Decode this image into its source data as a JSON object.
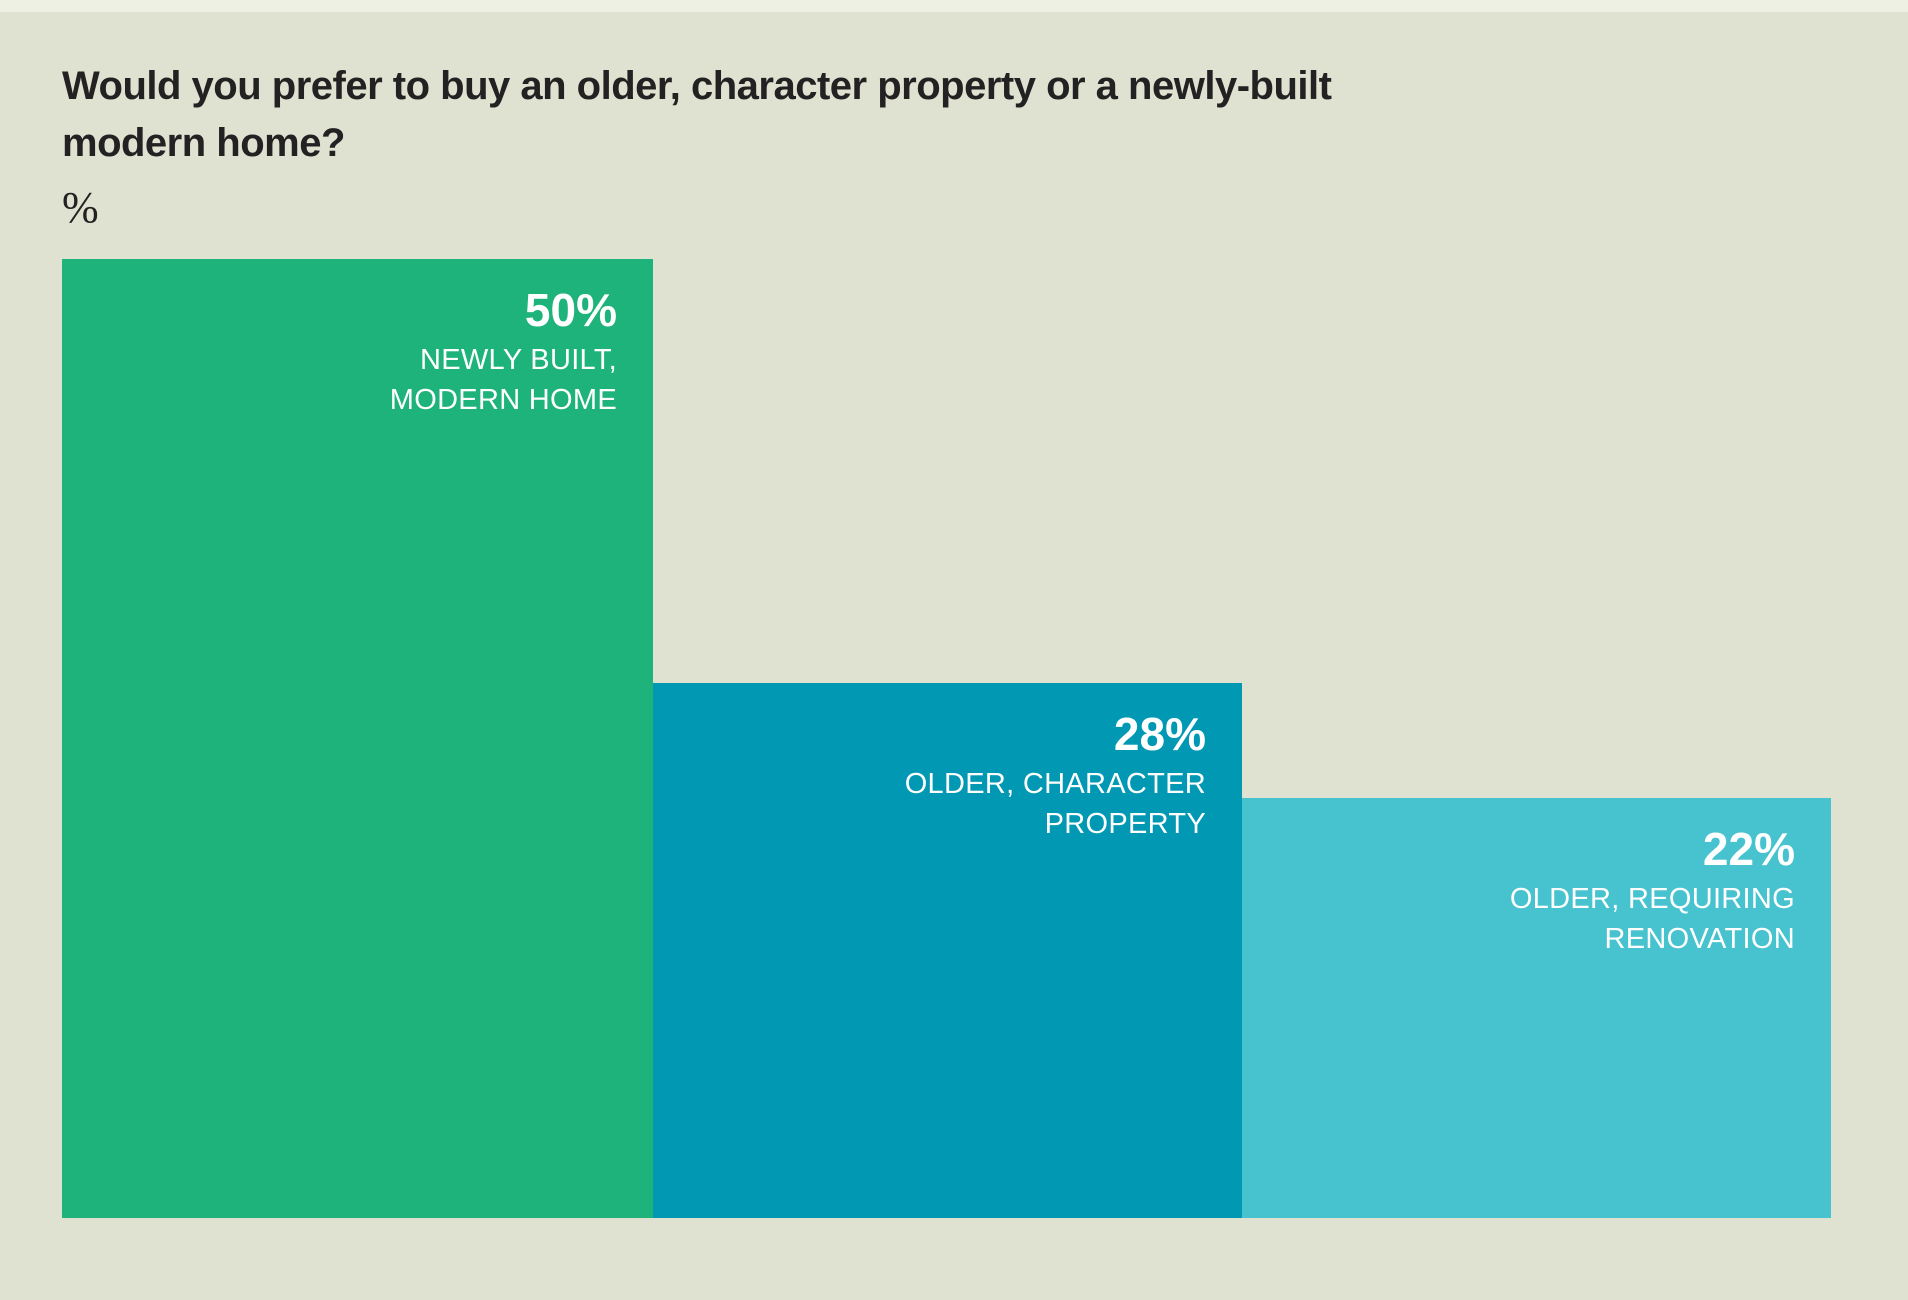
{
  "header": {
    "title_lines": [
      "Would you prefer to buy an older, character property or a newly-built",
      "modern home?"
    ],
    "title_full": "Would you prefer to buy an older, character property or a newly-built modern home?",
    "unit_label": "%"
  },
  "bars": [
    {
      "value_label": "50%",
      "label_lines": [
        "NEWLY BUILT,",
        "MODERN HOME"
      ],
      "color": "#1db37a"
    },
    {
      "value_label": "28%",
      "label_lines": [
        "OLDER, CHARACTER",
        "PROPERTY"
      ],
      "color": "#0098b3"
    },
    {
      "value_label": "22%",
      "label_lines": [
        "OLDER, REQUIRING",
        "RENOVATION"
      ],
      "color": "#47c2cf"
    }
  ],
  "colors": {
    "background": "#dfe2d1",
    "top_strip": "#eef0e3",
    "title_text": "#242122",
    "bar_text": "#ffffff",
    "bar_green": "#1db37a",
    "bar_teal": "#0098b3",
    "bar_cyan": "#47c2cf"
  },
  "chart_data": {
    "type": "bar",
    "title": "Would you prefer to buy an older, character property or a newly-built modern home?",
    "ylabel": "%",
    "xlabel": "",
    "categories": [
      "Newly built, modern home",
      "Older, character property",
      "Older, requiring renovation"
    ],
    "values": [
      50,
      28,
      22
    ],
    "ylim": [
      0,
      50
    ],
    "orientation": "vertical",
    "grid": false,
    "legend": false,
    "data_label_format": "value and category inside bar, top-right, white",
    "bar_colors": [
      "#1db37a",
      "#0098b3",
      "#47c2cf"
    ]
  }
}
